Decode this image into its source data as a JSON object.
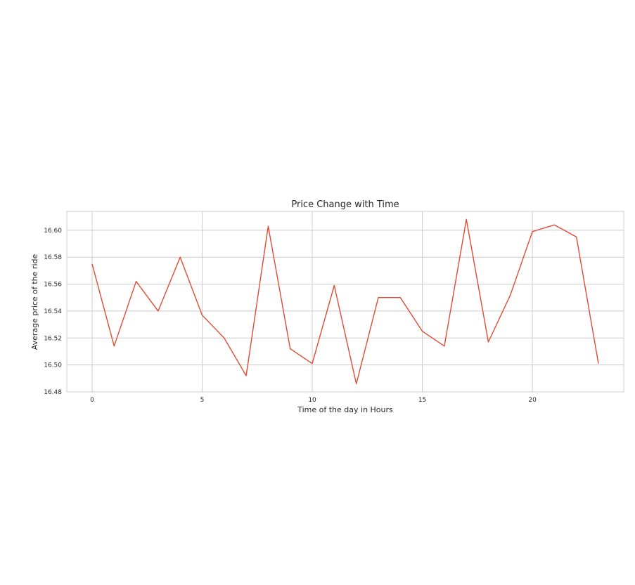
{
  "chart_data": {
    "type": "line",
    "title": "Price Change with Time",
    "xlabel": "Time of the day in Hours",
    "ylabel": "Average price of the ride",
    "xlim": [
      -1.15,
      24.15
    ],
    "ylim": [
      16.48,
      16.614
    ],
    "xticks": [
      0,
      5,
      10,
      15,
      20
    ],
    "xtick_labels": [
      "0",
      "5",
      "10",
      "15",
      "20"
    ],
    "yticks": [
      16.48,
      16.5,
      16.52,
      16.54,
      16.56,
      16.58,
      16.6
    ],
    "ytick_labels": [
      "16.48",
      "16.50",
      "16.52",
      "16.54",
      "16.56",
      "16.58",
      "16.60"
    ],
    "grid": true,
    "series": [
      {
        "color": "#e24a33",
        "x": [
          0,
          1,
          2,
          3,
          4,
          5,
          6,
          7,
          8,
          9,
          10,
          11,
          12,
          13,
          14,
          15,
          16,
          17,
          18,
          19,
          20,
          21,
          22,
          23
        ],
        "y": [
          16.575,
          16.514,
          16.562,
          16.54,
          16.58,
          16.537,
          16.52,
          16.492,
          16.603,
          16.512,
          16.501,
          16.559,
          16.486,
          16.55,
          16.55,
          16.525,
          16.514,
          16.608,
          16.517,
          16.552,
          16.599,
          16.604,
          16.595,
          16.501
        ]
      }
    ]
  }
}
